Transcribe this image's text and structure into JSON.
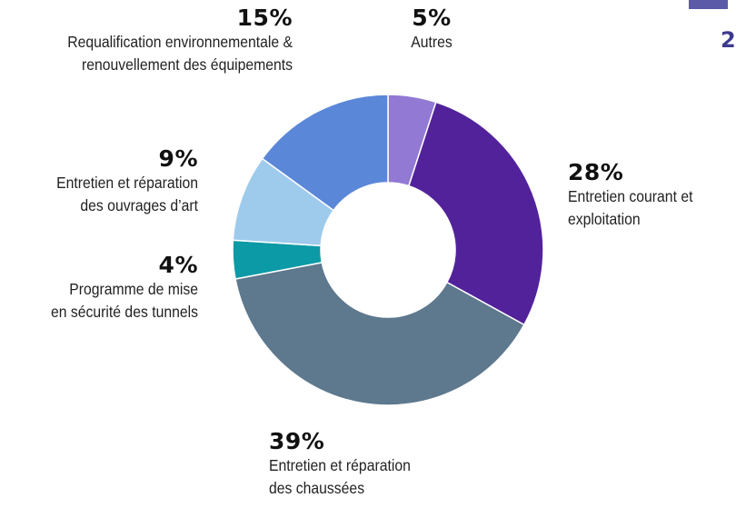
{
  "chart_data": {
    "type": "pie",
    "donut": true,
    "start": "top, clockwise",
    "slices": [
      {
        "value_label": "5%",
        "value": 5,
        "label_lines": [
          "Autres"
        ],
        "color": "#9279d3"
      },
      {
        "value_label": "28%",
        "value": 28,
        "label_lines": [
          "Entretien courant et",
          "exploitation"
        ],
        "color": "#52229b"
      },
      {
        "value_label": "39%",
        "value": 39,
        "label_lines": [
          "Entretien et réparation",
          "des chaussées"
        ],
        "color": "#5e788e"
      },
      {
        "value_label": "4%",
        "value": 4,
        "label_lines": [
          "Programme de mise",
          "en sécurité des tunnels"
        ],
        "color": "#0c9aa6"
      },
      {
        "value_label": "9%",
        "value": 9,
        "label_lines": [
          "Entretien et réparation",
          "des ouvrages d’art"
        ],
        "color": "#9ecbec"
      },
      {
        "value_label": "15%",
        "value": 15,
        "label_lines": [
          "Requalification environnementale &",
          "renouvellement des équipements"
        ],
        "color": "#5b87d9"
      }
    ]
  },
  "corner": {
    "tab_color": "#5b5aa8",
    "text": "2"
  }
}
